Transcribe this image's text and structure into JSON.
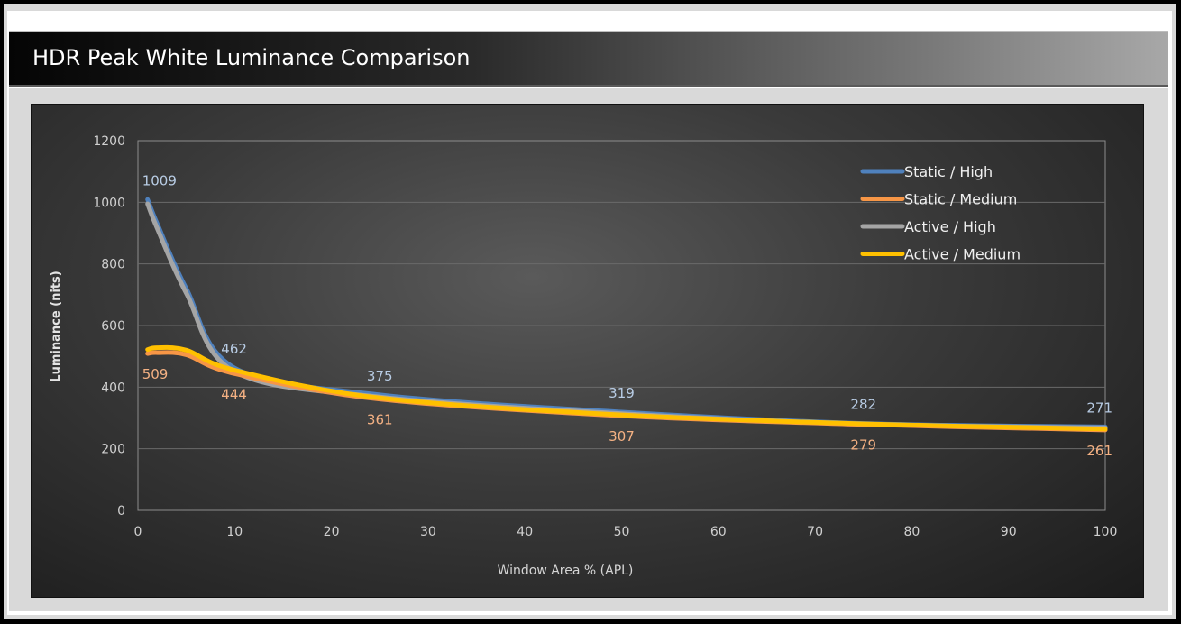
{
  "chart_data": {
    "type": "line",
    "title": "HDR Peak White Luminance Comparison",
    "xlabel": "Window Area % (APL)",
    "ylabel": "Luminance (nits)",
    "xlim": [
      0,
      100
    ],
    "ylim": [
      0,
      1200
    ],
    "x_ticks": [
      0,
      10,
      20,
      30,
      40,
      50,
      60,
      70,
      80,
      90,
      100
    ],
    "y_ticks": [
      0,
      200,
      400,
      600,
      800,
      1000,
      1200
    ],
    "grid": "horizontal",
    "legend_position": "top-right",
    "series": [
      {
        "name": "Static / High",
        "color": "#4f81bd",
        "x": [
          1,
          2,
          5,
          10,
          25,
          50,
          75,
          100
        ],
        "y": [
          1009,
          930,
          720,
          462,
          375,
          319,
          282,
          271
        ]
      },
      {
        "name": "Static / Medium",
        "color": "#f79646",
        "x": [
          1,
          2,
          5,
          10,
          25,
          50,
          75,
          100
        ],
        "y": [
          509,
          512,
          505,
          444,
          361,
          307,
          279,
          261
        ]
      },
      {
        "name": "Active / High",
        "color": "#a5a5a5",
        "x": [
          1,
          2,
          5,
          10,
          25,
          50,
          75,
          100
        ],
        "y": [
          995,
          915,
          705,
          450,
          368,
          314,
          280,
          268
        ]
      },
      {
        "name": "Active / Medium",
        "color": "#ffc000",
        "x": [
          1,
          2,
          5,
          10,
          25,
          50,
          75,
          100
        ],
        "y": [
          522,
          528,
          520,
          455,
          365,
          310,
          281,
          264
        ]
      }
    ],
    "annotations": [
      {
        "text": "1009",
        "x": 1,
        "y": 1009,
        "series": "Static / High",
        "placement": "above"
      },
      {
        "text": "462",
        "x": 10,
        "y": 462,
        "series": "Static / High",
        "placement": "above"
      },
      {
        "text": "375",
        "x": 25,
        "y": 375,
        "series": "Static / High",
        "placement": "above"
      },
      {
        "text": "319",
        "x": 50,
        "y": 319,
        "series": "Static / High",
        "placement": "above"
      },
      {
        "text": "282",
        "x": 75,
        "y": 282,
        "series": "Static / High",
        "placement": "above"
      },
      {
        "text": "271",
        "x": 100,
        "y": 271,
        "series": "Static / High",
        "placement": "above"
      },
      {
        "text": "509",
        "x": 1,
        "y": 509,
        "series": "Static / Medium",
        "placement": "below"
      },
      {
        "text": "444",
        "x": 10,
        "y": 444,
        "series": "Static / Medium",
        "placement": "below"
      },
      {
        "text": "361",
        "x": 25,
        "y": 361,
        "series": "Static / Medium",
        "placement": "below"
      },
      {
        "text": "307",
        "x": 50,
        "y": 307,
        "series": "Static / Medium",
        "placement": "below"
      },
      {
        "text": "279",
        "x": 75,
        "y": 279,
        "series": "Static / Medium",
        "placement": "below"
      },
      {
        "text": "261",
        "x": 100,
        "y": 261,
        "series": "Static / Medium",
        "placement": "below"
      }
    ]
  },
  "colors": {
    "label_high": "#b8cce4",
    "label_medium": "#f4b183",
    "grid": "#6a6a6a"
  }
}
